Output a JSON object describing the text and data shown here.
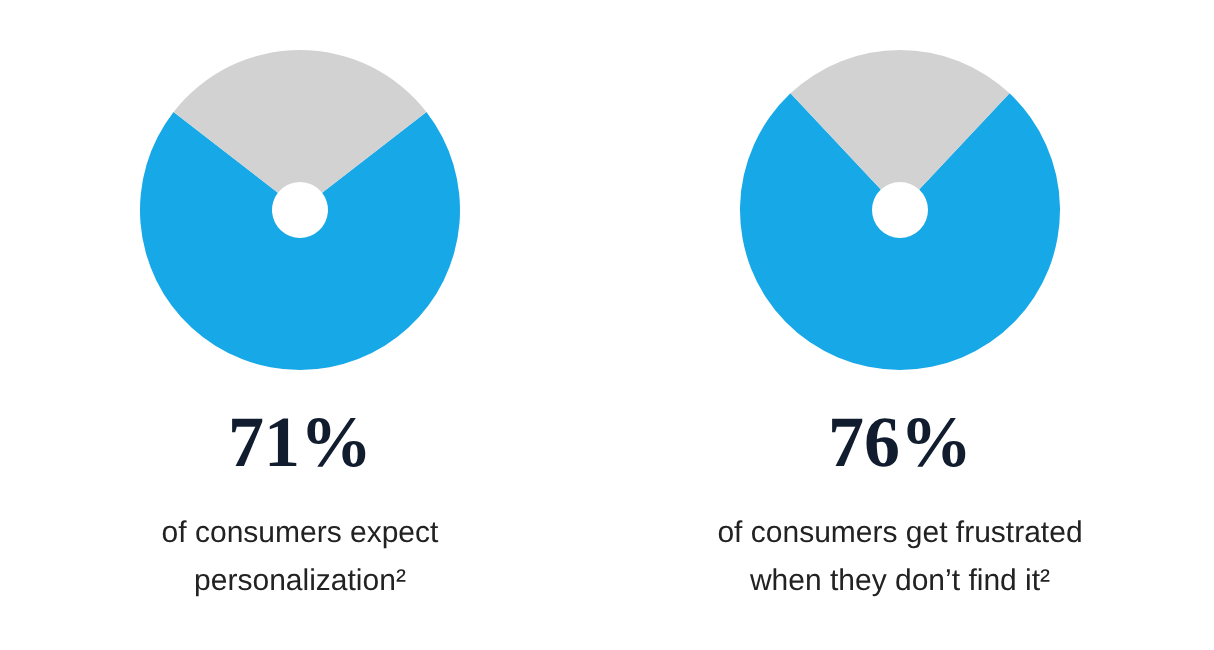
{
  "chart_data": [
    {
      "type": "donut",
      "categories": [
        null,
        null
      ],
      "values": [
        71,
        29
      ],
      "colors": [
        "#17a8e8",
        "#d2d2d2"
      ],
      "value_labels": [
        "71%",
        null
      ],
      "annotations": [
        "of consumers expect personalization²"
      ]
    },
    {
      "type": "donut",
      "categories": [
        null,
        null
      ],
      "values": [
        76,
        24
      ],
      "colors": [
        "#17a8e8",
        "#d2d2d2"
      ],
      "value_labels": [
        "76%",
        null
      ],
      "annotations": [
        "of consumers get frustrated when they don’t find it²"
      ]
    }
  ]
}
